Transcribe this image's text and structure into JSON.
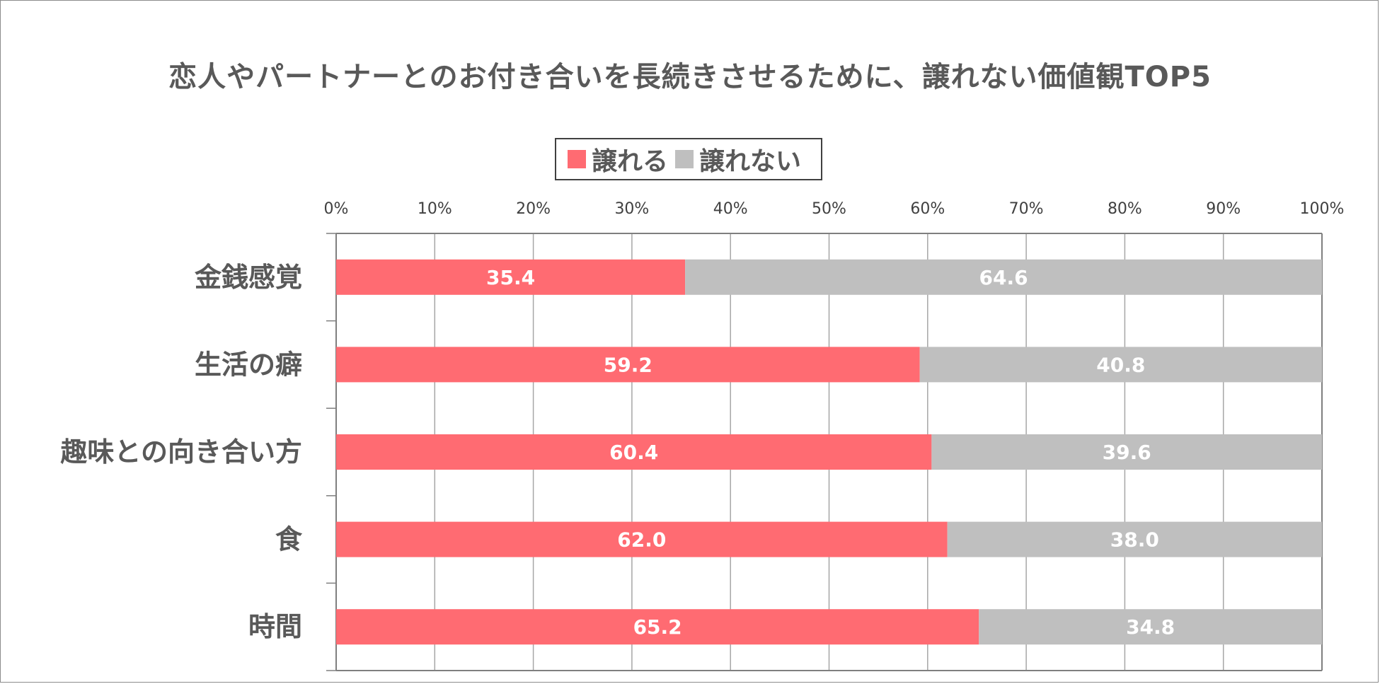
{
  "chart_data": {
    "type": "bar",
    "orientation": "horizontal",
    "stacked": true,
    "title": "恋人やパートナーとのお付き合いを長続きさせるために、譲れない価値観TOP5",
    "categories": [
      "金銭感覚",
      "生活の癖",
      "趣味との向き合い方",
      "食",
      "時間"
    ],
    "series": [
      {
        "name": "譲れる",
        "color": "#ff6b72",
        "values": [
          35.4,
          59.2,
          60.4,
          62.0,
          65.2
        ],
        "labels": [
          "35.4",
          "59.2",
          "60.4",
          "62.0",
          "65.2"
        ]
      },
      {
        "name": "譲れない",
        "color": "#bfbfbf",
        "values": [
          64.6,
          40.8,
          39.6,
          38.0,
          34.8
        ],
        "labels": [
          "64.6",
          "40.8",
          "39.6",
          "38.0",
          "34.8"
        ]
      }
    ],
    "xlim": [
      0,
      100
    ],
    "xticks": [
      "0%",
      "10%",
      "20%",
      "30%",
      "40%",
      "50%",
      "60%",
      "70%",
      "80%",
      "90%",
      "100%"
    ],
    "grid": true,
    "legend": "top-center",
    "xaxis_position": "top"
  }
}
